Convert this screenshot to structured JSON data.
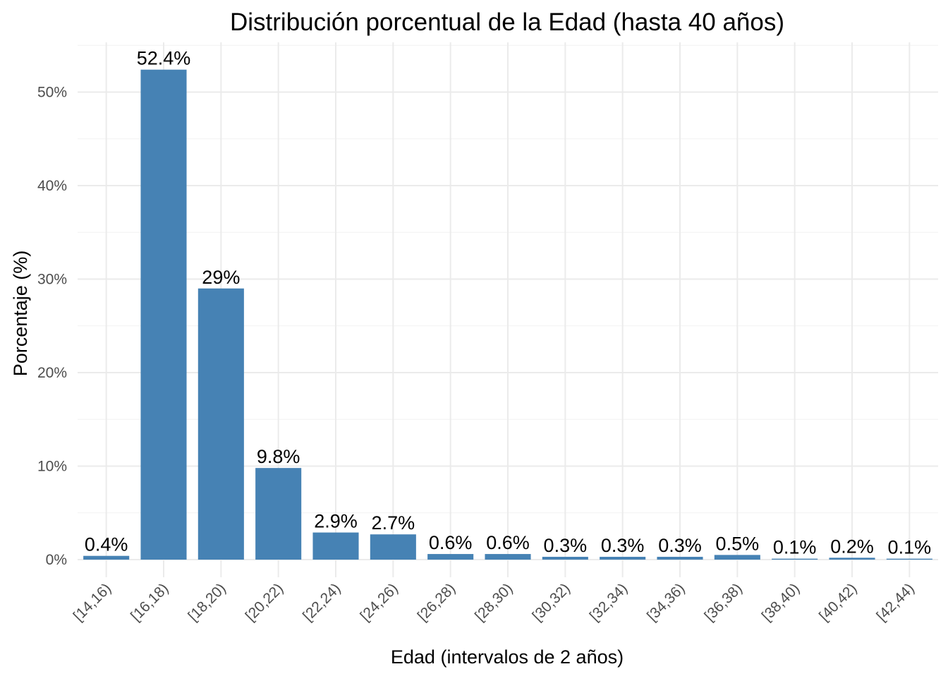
{
  "chart_data": {
    "type": "bar",
    "title": "Distribución porcentual de la Edad (hasta 40 años)",
    "xlabel": "Edad (intervalos de 2 años)",
    "ylabel": "Porcentaje (%)",
    "categories": [
      "[14,16)",
      "[16,18)",
      "[18,20)",
      "[20,22)",
      "[22,24)",
      "[24,26)",
      "[26,28)",
      "[28,30)",
      "[30,32)",
      "[32,34)",
      "[34,36)",
      "[36,38)",
      "[38,40)",
      "[40,42)",
      "[42,44)"
    ],
    "values": [
      0.4,
      52.4,
      29.0,
      9.8,
      2.9,
      2.7,
      0.6,
      0.6,
      0.3,
      0.3,
      0.3,
      0.5,
      0.1,
      0.2,
      0.1
    ],
    "data_labels": [
      "0.4%",
      "52.4%",
      "29%",
      "9.8%",
      "2.9%",
      "2.7%",
      "0.6%",
      "0.6%",
      "0.3%",
      "0.3%",
      "0.3%",
      "0.5%",
      "0.1%",
      "0.2%",
      "0.1%"
    ],
    "y_ticks": [
      0,
      10,
      20,
      30,
      40,
      50
    ],
    "y_tick_labels": [
      "0%",
      "10%",
      "20%",
      "30%",
      "40%",
      "50%"
    ],
    "ylim": [
      0,
      55
    ],
    "grid": true,
    "legend": "none",
    "colors": {
      "bar": "#4682b4",
      "grid_major": "#ebebeb",
      "grid_minor": "#f2f2f2",
      "tick_text": "#4d4d4d",
      "text": "#000000"
    }
  }
}
